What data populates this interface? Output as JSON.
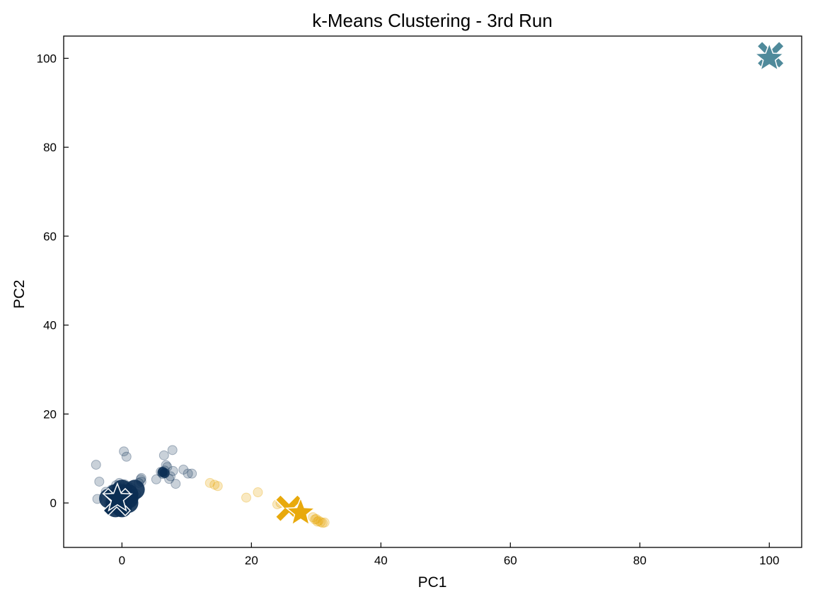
{
  "chart_data": {
    "type": "scatter",
    "title": "k-Means Clustering - 3rd Run",
    "xlabel": "PC1",
    "ylabel": "PC2",
    "xlim": [
      -9,
      105
    ],
    "ylim": [
      -10,
      105
    ],
    "xticks": [
      0,
      20,
      40,
      60,
      80,
      100
    ],
    "yticks": [
      0,
      20,
      40,
      60,
      80,
      100
    ],
    "xtick_labels": [
      "0",
      "20",
      "40",
      "60",
      "80",
      "100"
    ],
    "ytick_labels": [
      "0",
      "20",
      "40",
      "60",
      "80",
      "100"
    ],
    "grid": false,
    "colors": {
      "navy": "#0b2e53",
      "gold": "#e8a90c",
      "teal": "#4f8a9b"
    },
    "series": [
      {
        "color": "#0b2e53",
        "opacity": 0.22,
        "x": [
          -1.5,
          -1,
          -0.5,
          0,
          0.5,
          1,
          1.5,
          2,
          -2,
          -1.8,
          -1.2,
          -0.3,
          0.2,
          0.8,
          1.3,
          1.8,
          2.2,
          -1.6,
          -0.9,
          -0.4,
          0.4,
          0.9,
          1.4,
          2.6,
          2.9,
          3,
          -2.5,
          -3.5,
          -4,
          -3.8,
          0.3,
          0.7,
          6,
          6.3,
          6.6,
          6.2,
          7,
          6.8,
          7.5,
          7.9,
          9.5,
          10.2,
          10.8,
          8.3,
          7.3,
          5.3,
          6.5,
          7.8,
          3,
          -0.2,
          0.5,
          -1.3,
          1.1,
          -0.7
        ],
        "y": [
          1,
          2,
          3,
          3.5,
          3,
          2.5,
          2,
          1.5,
          0,
          -1,
          -1.5,
          -2,
          -1.8,
          -1,
          0,
          1,
          2,
          3,
          4,
          4.5,
          4.2,
          3.8,
          3.4,
          4.5,
          5.3,
          5.6,
          2.5,
          4.8,
          8.6,
          0.9,
          11.6,
          10.4,
          7,
          6.5,
          7.3,
          6.8,
          8.1,
          8.5,
          6,
          7.2,
          7.5,
          6.6,
          6.6,
          4.3,
          5.4,
          5.3,
          10.7,
          11.9,
          4.8,
          0.5,
          1.2,
          -0.3,
          0.8,
          2.2
        ]
      },
      {
        "color": "#e8a90c",
        "opacity": 0.25,
        "x": [
          13.6,
          14.3,
          14.8,
          19.2,
          21,
          24,
          24.5,
          29.5,
          30,
          30.4,
          30.7,
          31,
          31.3,
          30.2,
          29.8
        ],
        "y": [
          4.5,
          4.1,
          3.8,
          1.2,
          2.4,
          -0.3,
          0,
          -3.2,
          -3.6,
          -4,
          -4.3,
          -4.5,
          -4.4,
          -4.2,
          -3.7
        ]
      }
    ],
    "centroids": [
      {
        "x": 100.2,
        "y": 100.8,
        "marker": "x",
        "color": "#4f8a9b"
      },
      {
        "x": 100,
        "y": 100,
        "marker": "star",
        "color": "#4f8a9b"
      },
      {
        "x": 25.8,
        "y": -1.2,
        "marker": "x",
        "color": "#e8a90c"
      },
      {
        "x": 27.6,
        "y": -2.2,
        "marker": "star",
        "color": "#e8a90c"
      },
      {
        "x": -0.8,
        "y": 0.2,
        "marker": "x",
        "color": "#0b2e53"
      },
      {
        "x": -0.7,
        "y": 1,
        "marker": "star",
        "color": "#0b2e53"
      }
    ]
  }
}
